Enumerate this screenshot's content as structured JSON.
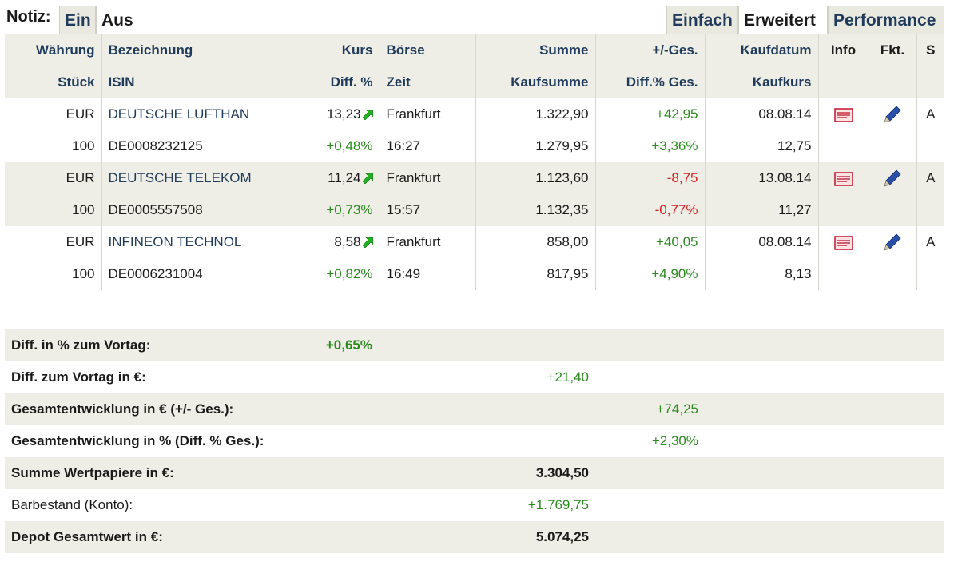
{
  "notiz": {
    "label": "Notiz:",
    "ein": "Ein",
    "aus": "Aus"
  },
  "view_tabs": {
    "einfach": "Einfach",
    "erweitert": "Erweitert",
    "performance": "Performance"
  },
  "headers": {
    "row1": {
      "waehrung": "Währung",
      "bezeichnung": "Bezeichnung",
      "kurs": "Kurs",
      "boerse": "Börse",
      "summe": "Summe",
      "ges": "+/-Ges.",
      "kaufdatum": "Kaufdatum",
      "info": "Info",
      "fkt": "Fkt.",
      "s": "S"
    },
    "row2": {
      "stueck": "Stück",
      "isin": "ISIN",
      "diff": "Diff. %",
      "zeit": "Zeit",
      "kaufsumme": "Kaufsumme",
      "diff_ges": "Diff.% Ges.",
      "kaufkurs": "Kaufkurs"
    }
  },
  "positions": [
    {
      "currency": "EUR",
      "name": "DEUTSCHE LUFTHAN",
      "kurs": "13,23",
      "exchange": "Frankfurt",
      "summe": "1.322,90",
      "ges": "+42,95",
      "kaufdatum": "08.08.14",
      "s": "A",
      "qty": "100",
      "isin": "DE0008232125",
      "diff": "+0,48%",
      "time": "16:27",
      "kaufsumme": "1.279,95",
      "diff_ges": "+3,36%",
      "kaufkurs": "12,75"
    },
    {
      "currency": "EUR",
      "name": "DEUTSCHE TELEKOM",
      "kurs": "11,24",
      "exchange": "Frankfurt",
      "summe": "1.123,60",
      "ges": "-8,75",
      "kaufdatum": "13.08.14",
      "s": "A",
      "qty": "100",
      "isin": "DE0005557508",
      "diff": "+0,73%",
      "time": "15:57",
      "kaufsumme": "1.132,35",
      "diff_ges": "-0,77%",
      "kaufkurs": "11,27"
    },
    {
      "currency": "EUR",
      "name": "INFINEON TECHNOL",
      "kurs": "8,58",
      "exchange": "Frankfurt",
      "summe": "858,00",
      "ges": "+40,05",
      "kaufdatum": "08.08.14",
      "s": "A",
      "qty": "100",
      "isin": "DE0006231004",
      "diff": "+0,82%",
      "time": "16:49",
      "kaufsumme": "817,95",
      "diff_ges": "+4,90%",
      "kaufkurs": "8,13"
    }
  ],
  "summary": {
    "diff_vortag_pct": {
      "label": "Diff. in % zum Vortag:",
      "value": "+0,65%"
    },
    "diff_vortag_eur": {
      "label": "Diff. zum Vortag in €:",
      "value": "+21,40"
    },
    "gesamt_eur": {
      "label": "Gesamtentwicklung in € (+/- Ges.):",
      "value": "+74,25"
    },
    "gesamt_pct": {
      "label": "Gesamtentwicklung in % (Diff. % Ges.):",
      "value": "+2,30%"
    },
    "summe_wp": {
      "label": "Summe Wertpapiere in €:",
      "value": "3.304,50"
    },
    "barbestand": {
      "label": "Barbestand (Konto):",
      "value": "+1.769,75"
    },
    "depot_gesamt": {
      "label": "Depot Gesamtwert in €:",
      "value": "5.074,25"
    }
  },
  "colors": {
    "positive": "#2a8a1e",
    "negative": "#d42020",
    "link": "#1f3a5a",
    "row_bg": "#eeeee6",
    "arrow": "#22b022"
  },
  "icons": {
    "trend": "arrow-up-right-icon",
    "info": "info-document-icon",
    "edit": "pencil-icon"
  }
}
